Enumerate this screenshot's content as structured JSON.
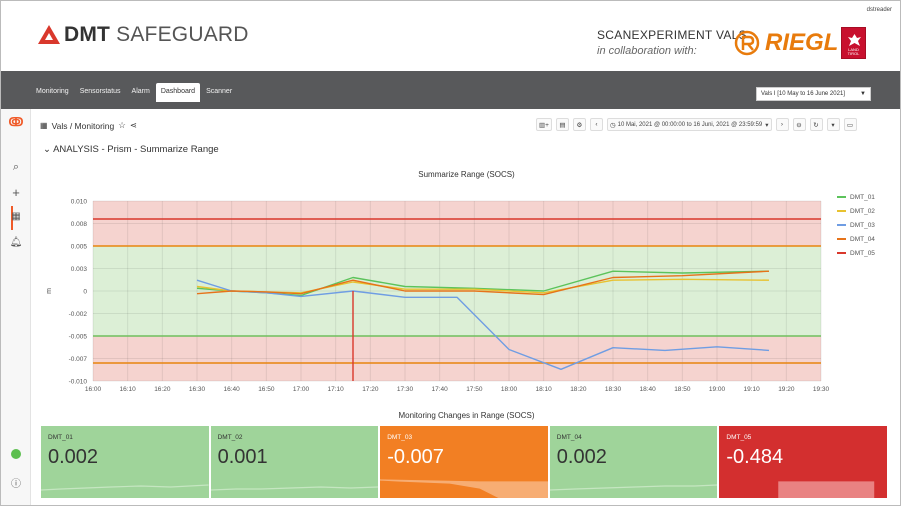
{
  "header": {
    "user": "dstreader",
    "logo_bold": "DMT",
    "logo_rest": "SAFEGUARD",
    "scan_title": "SCANEXPERIMENT VALS",
    "scan_sub": "in collaboration with:",
    "riegl": "RIEGL",
    "tirol": "LAND TIROL"
  },
  "nav": {
    "tabs": [
      {
        "label": "Monitoring",
        "active": false
      },
      {
        "label": "Sensorstatus",
        "active": false
      },
      {
        "label": "Alarm",
        "active": false
      },
      {
        "label": "Dashboard",
        "active": true
      },
      {
        "label": "Scanner",
        "active": false
      }
    ],
    "date_select": "Vals I [10 May to 16 June 2021]"
  },
  "toolbar": {
    "breadcrumb": "Vals / Monitoring",
    "time_range": "10 Mai, 2021 @ 00:00:00 to 16 Juni, 2021 @ 23:59:59"
  },
  "row_title": "ANALYSIS - Prism - Summarize Range",
  "chart_data": {
    "type": "line",
    "title": "Summarize Range (SOCS)",
    "ylabel": "m",
    "x": [
      "16:30",
      "16:40",
      "16:50",
      "17:00",
      "17:10",
      "17:20",
      "17:30",
      "17:40",
      "17:50",
      "18:00",
      "18:10",
      "18:20",
      "18:30",
      "18:40",
      "18:50",
      "19:00",
      "19:10",
      "19:15"
    ],
    "xlim": [
      "16:00",
      "19:30"
    ],
    "x_ticks": [
      "16:00",
      "16:10",
      "16:20",
      "16:30",
      "16:40",
      "16:50",
      "17:00",
      "17:10",
      "17:20",
      "17:30",
      "17:40",
      "17:50",
      "18:00",
      "18:10",
      "18:20",
      "18:30",
      "18:40",
      "18:50",
      "19:00",
      "19:10",
      "19:20",
      "19:30"
    ],
    "ylim": [
      -0.01,
      0.01
    ],
    "y_ticks": [
      "0.010",
      "0.008",
      "0.005",
      "0.003",
      "0",
      "-0.002",
      "-0.005",
      "-0.007",
      "-0.010"
    ],
    "y_tick_values": [
      0.01,
      0.0075,
      0.005,
      0.0025,
      0,
      -0.0025,
      -0.005,
      -0.0075,
      -0.01
    ],
    "grid": true,
    "legend_position": "right",
    "bands": [
      {
        "from": 0.005,
        "to": 0.01,
        "color": "#f5d3cf"
      },
      {
        "from": -0.005,
        "to": 0.005,
        "color": "#dcefd6"
      },
      {
        "from": -0.01,
        "to": -0.005,
        "color": "#f5d3cf"
      }
    ],
    "thresholds": [
      {
        "value": 0.008,
        "color": "#d9382c"
      },
      {
        "value": 0.005,
        "color": "#e8850f"
      },
      {
        "value": -0.005,
        "color": "#6fbf5d"
      },
      {
        "value": -0.008,
        "color": "#e8850f"
      }
    ],
    "series": [
      {
        "name": "DMT_01",
        "color": "#5cc35b",
        "x": [
          "16:30",
          "16:40",
          "16:50",
          "17:00",
          "17:15",
          "17:30",
          "17:50",
          "18:10",
          "18:30",
          "18:50",
          "19:15"
        ],
        "values": [
          0.0003,
          0.0,
          -0.0002,
          -0.0005,
          0.0015,
          0.0005,
          0.0003,
          0.0,
          0.0022,
          0.002,
          0.0022
        ]
      },
      {
        "name": "DMT_02",
        "color": "#e8c230",
        "x": [
          "16:30",
          "16:40",
          "16:50",
          "17:00",
          "17:15",
          "17:30",
          "17:50",
          "18:10",
          "18:30",
          "18:50",
          "19:15"
        ],
        "values": [
          0.0005,
          0.0,
          -0.0001,
          -0.0002,
          0.001,
          0.0002,
          0.0002,
          -0.0002,
          0.0012,
          0.0013,
          0.0012
        ]
      },
      {
        "name": "DMT_03",
        "color": "#6f9de3",
        "x": [
          "16:30",
          "16:40",
          "16:50",
          "17:00",
          "17:15",
          "17:30",
          "17:45",
          "18:00",
          "18:15",
          "18:30",
          "18:45",
          "19:00",
          "19:15"
        ],
        "values": [
          0.0012,
          0.0,
          -0.0002,
          -0.0006,
          0.0,
          -0.0007,
          -0.0007,
          -0.0065,
          -0.0087,
          -0.0063,
          -0.0066,
          -0.0062,
          -0.0066
        ]
      },
      {
        "name": "DMT_04",
        "color": "#e6731a",
        "x": [
          "16:30",
          "16:40",
          "16:50",
          "17:00",
          "17:15",
          "17:30",
          "17:50",
          "18:10",
          "18:30",
          "18:50",
          "19:15"
        ],
        "values": [
          -0.0003,
          0.0,
          -0.0001,
          -0.0003,
          0.0012,
          0.0,
          0.0,
          -0.0004,
          0.0015,
          0.0017,
          0.0022
        ]
      },
      {
        "name": "DMT_05",
        "color": "#d9382c",
        "x": [
          "17:15",
          "17:15"
        ],
        "values": [
          0.0,
          -0.01
        ]
      }
    ]
  },
  "stats_title": "Monitoring Changes in Range (SOCS)",
  "stats": [
    {
      "name": "DMT_01",
      "value": "0.002",
      "bg": "#9fd49a",
      "text": "#333333",
      "spark": "#c5e6c1"
    },
    {
      "name": "DMT_02",
      "value": "0.001",
      "bg": "#9fd49a",
      "text": "#333333",
      "spark": "#c5e6c1"
    },
    {
      "name": "DMT_03",
      "value": "-0.007",
      "bg": "#f27f23",
      "text": "#ffffff",
      "spark": "#f7ad73"
    },
    {
      "name": "DMT_04",
      "value": "0.002",
      "bg": "#9fd49a",
      "text": "#333333",
      "spark": "#c5e6c1"
    },
    {
      "name": "DMT_05",
      "value": "-0.484",
      "bg": "#d32f2f",
      "text": "#ffffff",
      "spark": "#e98282"
    }
  ],
  "colors": {
    "nav_bg": "#58595b",
    "accent": "#f05a28"
  }
}
